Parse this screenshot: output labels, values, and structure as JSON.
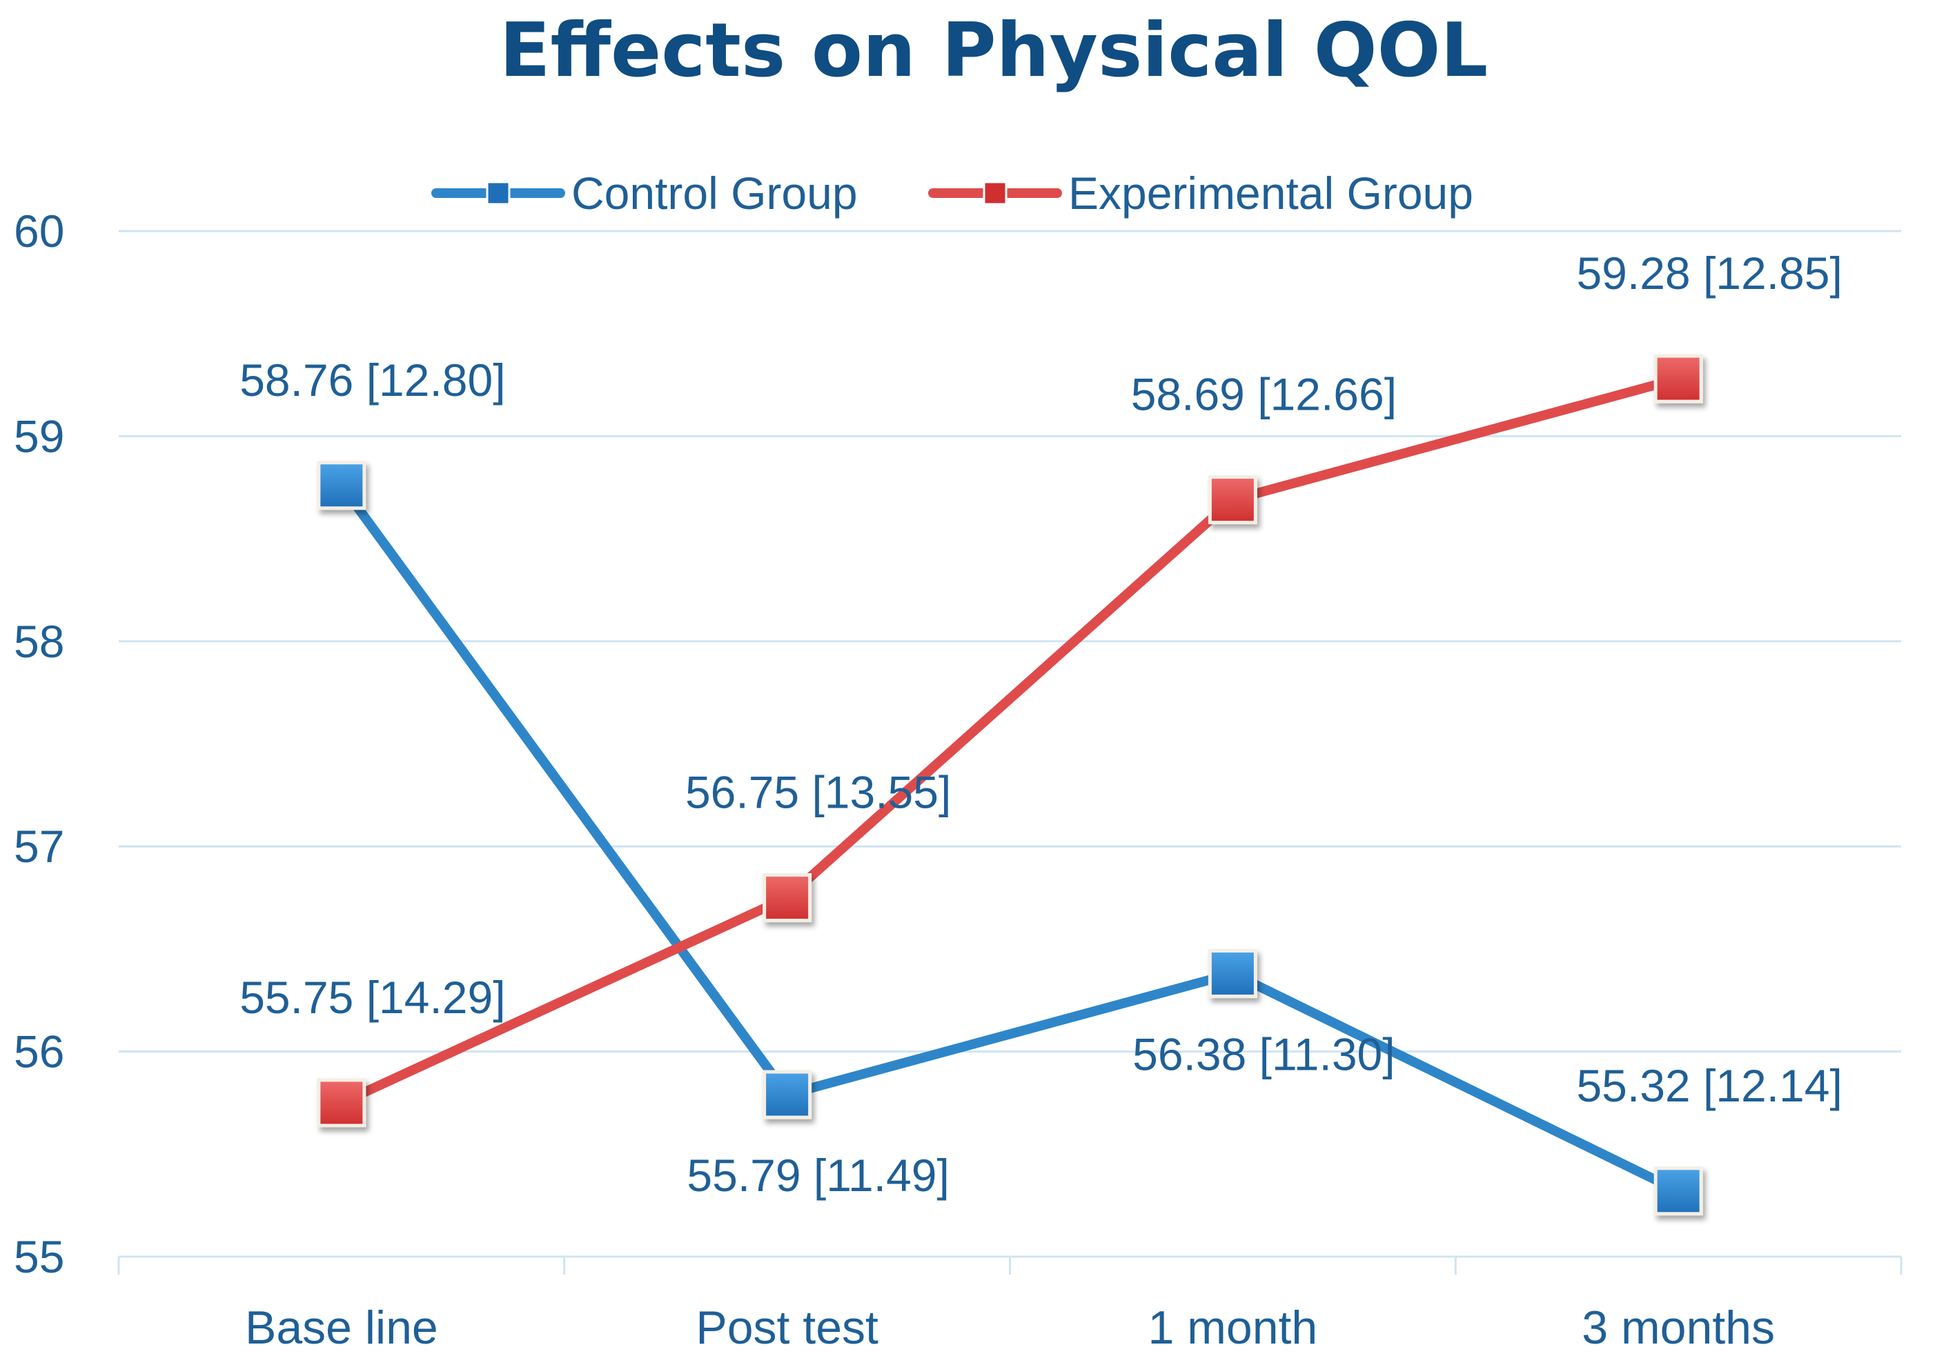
{
  "chart_data": {
    "type": "line",
    "title": "Effects on Physical QOL",
    "categories": [
      "Base line",
      "Post test",
      "1 month",
      "3 months"
    ],
    "series": [
      {
        "name": "Control Group",
        "color": "#2e86c9",
        "marker_color": "#1f6fb8",
        "values": [
          58.76,
          55.79,
          56.38,
          55.32
        ],
        "labels": [
          "58.76 [12.80]",
          "55.79 [11.49]",
          "56.38 [11.30]",
          "55.32 [12.14]"
        ],
        "label_positions": [
          "above",
          "below",
          "below",
          "above"
        ]
      },
      {
        "name": "Experimental Group",
        "color": "#df4b4b",
        "marker_color": "#cf2f2f",
        "values": [
          55.75,
          56.75,
          58.69,
          59.28
        ],
        "labels": [
          "55.75 [14.29]",
          "56.75 [13.55]",
          "58.69 [12.66]",
          "59.28 [12.85]"
        ],
        "label_positions": [
          "above",
          "above",
          "above",
          "above"
        ]
      }
    ],
    "ylim": [
      55,
      60
    ],
    "yticks": [
      55,
      56,
      57,
      58,
      59,
      60
    ],
    "xlabel": "",
    "ylabel": "",
    "grid": true,
    "legend": "top"
  }
}
